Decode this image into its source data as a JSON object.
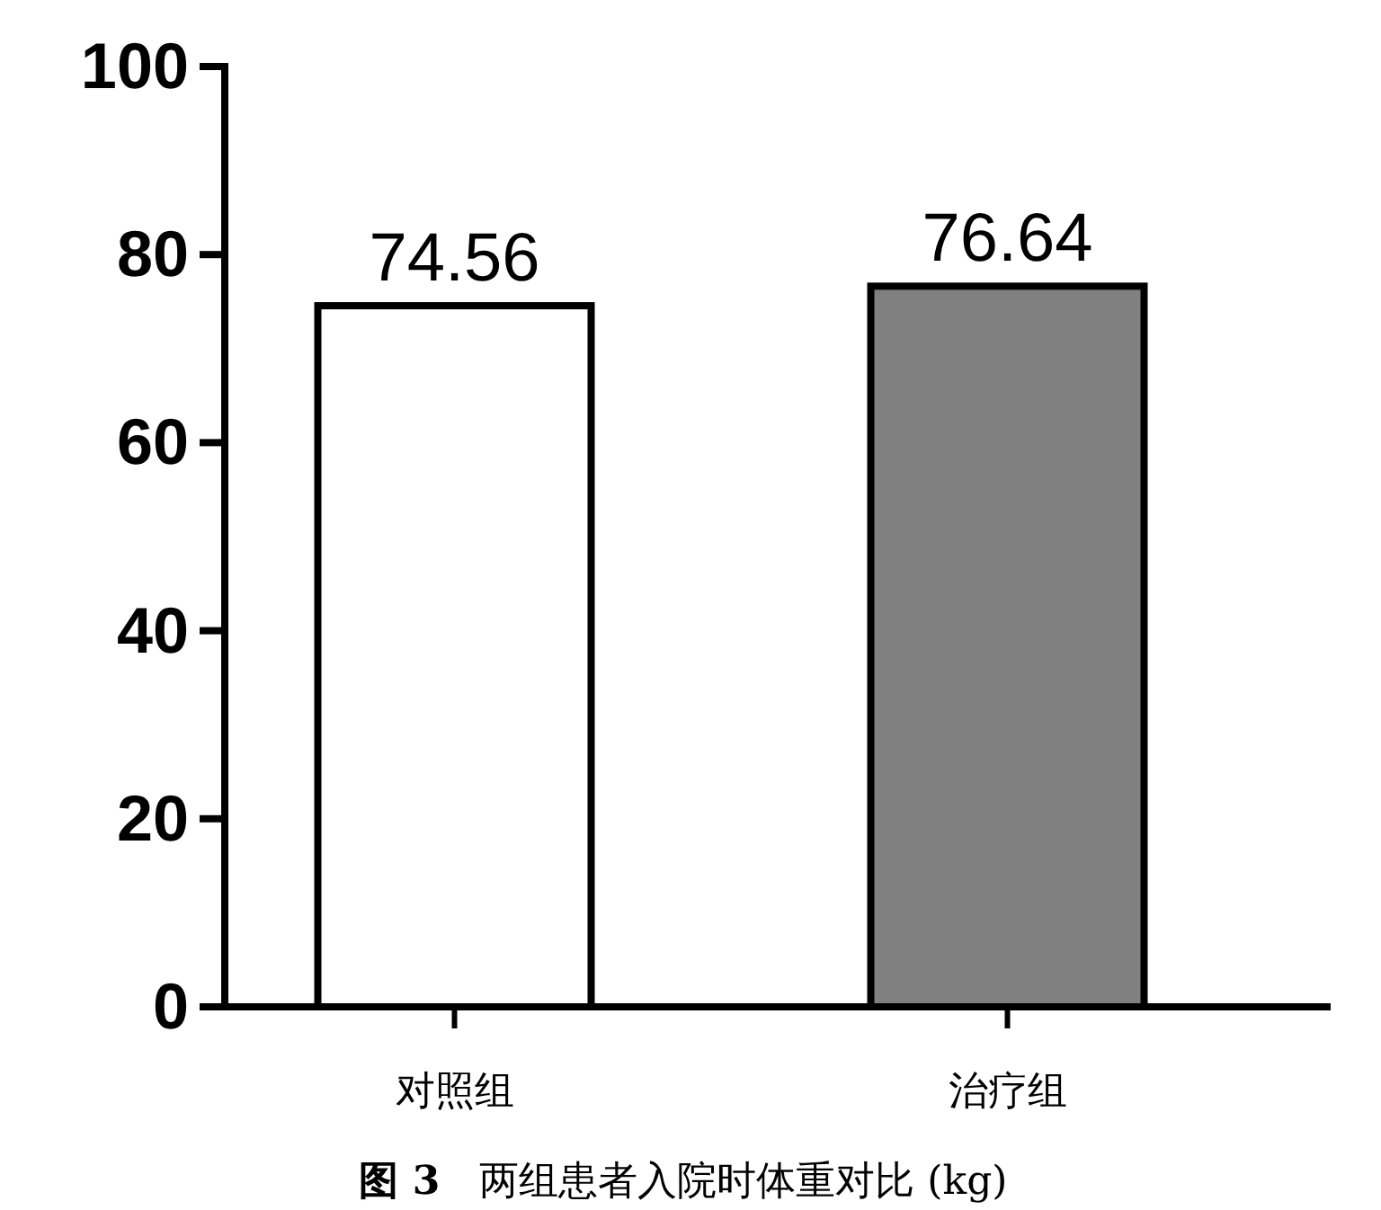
{
  "chart_data": {
    "type": "bar",
    "title": "**图 3**　两组患者入院时体重对比 (kg)",
    "categories": [
      "对照组",
      "治疗组"
    ],
    "values": [
      74.56,
      76.64
    ],
    "colors": [
      "#ffffff",
      "#808080"
    ],
    "ylim": [
      0,
      100
    ],
    "yticks": [
      0,
      20,
      40,
      60,
      80,
      100
    ],
    "data_labels": true
  }
}
